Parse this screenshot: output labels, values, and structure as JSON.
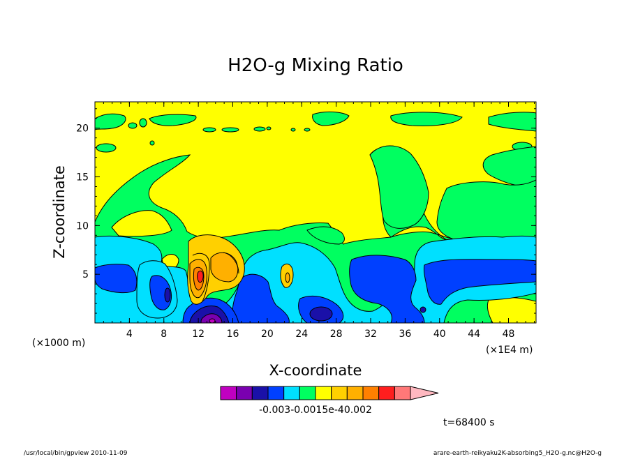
{
  "chart_data": {
    "type": "heatmap",
    "title": "H2O-g Mixing Ratio",
    "xlabel": "X-coordinate",
    "ylabel": "Z-coordinate",
    "x_unit_left": "(×1000 m)",
    "x_unit_right": "(×1E4 m)",
    "x_ticks": [
      4,
      8,
      12,
      16,
      20,
      24,
      28,
      32,
      36,
      40,
      44,
      48
    ],
    "y_ticks": [
      5,
      10,
      15,
      20
    ],
    "xlim": [
      0,
      51.2
    ],
    "ylim": [
      0,
      22.7
    ],
    "colorbar": {
      "colors": [
        "#c000c0",
        "#7a00b0",
        "#1a10a8",
        "#0040ff",
        "#00e0ff",
        "#00ff60",
        "#ffff00",
        "#ffd000",
        "#ffb000",
        "#ff8000",
        "#ff1e1e",
        "#ff7878",
        "#ffb8c0"
      ],
      "label": "-0.003-0.0015e-40.002"
    },
    "time_label": "t=68400 s",
    "footer_left": "/usr/local/bin/gpview  2010-11-09",
    "footer_right": "arare-earth-reikyaku2K-absorbing5_H2O-g.nc@H2O-g"
  }
}
